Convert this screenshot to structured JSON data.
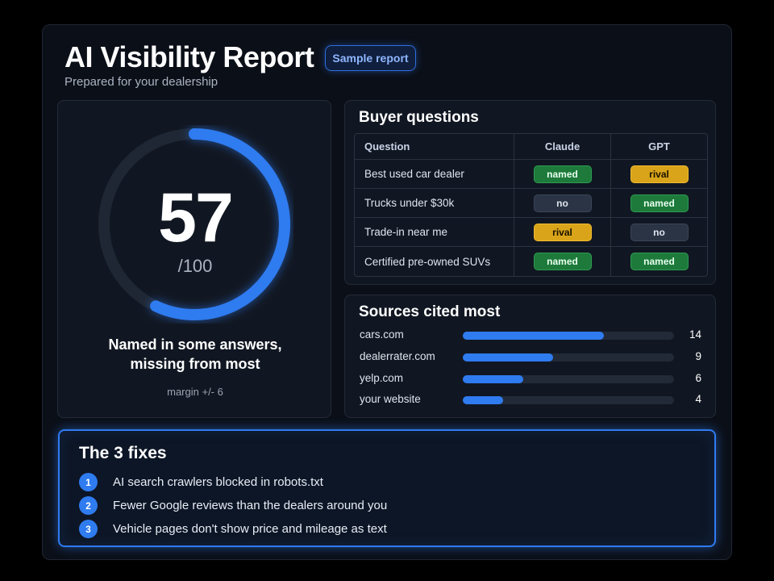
{
  "header": {
    "title": "AI Visibility Report",
    "badge": "Sample report",
    "subtitle": "Prepared for your dealership"
  },
  "score": {
    "value": "57",
    "max_label": "/100",
    "fraction": 0.57,
    "verdict_line1": "Named in some answers,",
    "verdict_line2": "missing from most",
    "margin": "margin +/- 6"
  },
  "questions": {
    "title": "Buyer questions",
    "columns": [
      "Question",
      "Claude",
      "GPT"
    ],
    "rows": [
      {
        "question": "Best used car dealer",
        "claude": "named",
        "gpt": "rival"
      },
      {
        "question": "Trucks under $30k",
        "claude": "no",
        "gpt": "named"
      },
      {
        "question": "Trade-in near me",
        "claude": "rival",
        "gpt": "no"
      },
      {
        "question": "Certified pre-owned SUVs",
        "claude": "named",
        "gpt": "named"
      }
    ]
  },
  "sources": {
    "title": "Sources cited most",
    "items": [
      {
        "name": "cars.com",
        "count": "14",
        "value": 14
      },
      {
        "name": "dealerrater.com",
        "count": "9",
        "value": 9
      },
      {
        "name": "yelp.com",
        "count": "6",
        "value": 6
      },
      {
        "name": "your website",
        "count": "4",
        "value": 4
      }
    ],
    "max_value": 21
  },
  "fixes": {
    "title": "The 3 fixes",
    "items": [
      {
        "num": "1",
        "text": "AI search crawlers blocked in robots.txt"
      },
      {
        "num": "2",
        "text": "Fewer Google reviews than the dealers around you"
      },
      {
        "num": "3",
        "text": "Vehicle pages don't show price and mileage as text"
      }
    ]
  },
  "colors": {
    "accent": "#2f7bf0",
    "named": "#1d7a3a",
    "rival": "#d9a41a",
    "no": "#2a3445",
    "background": "#0b0f17"
  }
}
